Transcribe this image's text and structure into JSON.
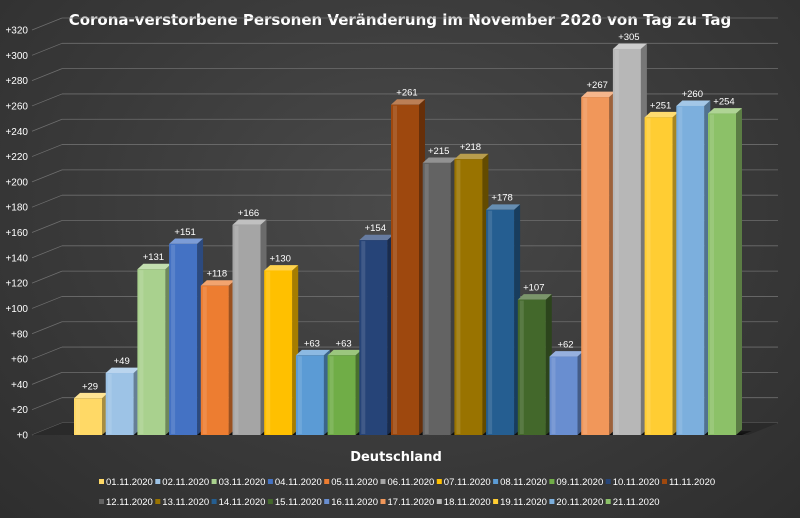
{
  "chart_data": {
    "type": "bar",
    "title": "Corona-verstorbene Personen Veränderung im November 2020 von Tag zu Tag",
    "xlabel": "Deutschland",
    "ylabel": "",
    "ylim": [
      0,
      320
    ],
    "y_ticks": [
      "+0",
      "+20",
      "+40",
      "+60",
      "+80",
      "+100",
      "+120",
      "+140",
      "+160",
      "+180",
      "+200",
      "+220",
      "+240",
      "+260",
      "+280",
      "+300",
      "+320"
    ],
    "categories": [
      "Deutschland"
    ],
    "grid": true,
    "legend_position": "bottom",
    "series": [
      {
        "name": "01.11.2020",
        "values": [
          29
        ],
        "label": "+29",
        "color": "#ffd966"
      },
      {
        "name": "02.11.2020",
        "values": [
          49
        ],
        "label": "+49",
        "color": "#9dc3e6"
      },
      {
        "name": "03.11.2020",
        "values": [
          131
        ],
        "label": "+131",
        "color": "#a9d18e"
      },
      {
        "name": "04.11.2020",
        "values": [
          151
        ],
        "label": "+151",
        "color": "#4472c4"
      },
      {
        "name": "05.11.2020",
        "values": [
          118
        ],
        "label": "+118",
        "color": "#ed7d31"
      },
      {
        "name": "06.11.2020",
        "values": [
          166
        ],
        "label": "+166",
        "color": "#a5a5a5"
      },
      {
        "name": "07.11.2020",
        "values": [
          130
        ],
        "label": "+130",
        "color": "#ffc000"
      },
      {
        "name": "08.11.2020",
        "values": [
          63
        ],
        "label": "+63",
        "color": "#5b9bd5"
      },
      {
        "name": "09.11.2020",
        "values": [
          63
        ],
        "label": "+63",
        "color": "#70ad47"
      },
      {
        "name": "10.11.2020",
        "values": [
          154
        ],
        "label": "+154",
        "color": "#264478"
      },
      {
        "name": "11.11.2020",
        "values": [
          261
        ],
        "label": "+261",
        "color": "#9e480e"
      },
      {
        "name": "12.11.2020",
        "values": [
          215
        ],
        "label": "+215",
        "color": "#636363"
      },
      {
        "name": "13.11.2020",
        "values": [
          218
        ],
        "label": "+218",
        "color": "#997300"
      },
      {
        "name": "14.11.2020",
        "values": [
          178
        ],
        "label": "+178",
        "color": "#255e91"
      },
      {
        "name": "15.11.2020",
        "values": [
          107
        ],
        "label": "+107",
        "color": "#43682b"
      },
      {
        "name": "16.11.2020",
        "values": [
          62
        ],
        "label": "+62",
        "color": "#698ed0"
      },
      {
        "name": "17.11.2020",
        "values": [
          267
        ],
        "label": "+267",
        "color": "#f1975a"
      },
      {
        "name": "18.11.2020",
        "values": [
          305
        ],
        "label": "+305",
        "color": "#b7b7b7"
      },
      {
        "name": "19.11.2020",
        "values": [
          251
        ],
        "label": "+251",
        "color": "#ffcd33"
      },
      {
        "name": "20.11.2020",
        "values": [
          260
        ],
        "label": "+260",
        "color": "#7cafdd"
      },
      {
        "name": "21.11.2020",
        "values": [
          254
        ],
        "label": "+254",
        "color": "#8cc168"
      }
    ]
  }
}
